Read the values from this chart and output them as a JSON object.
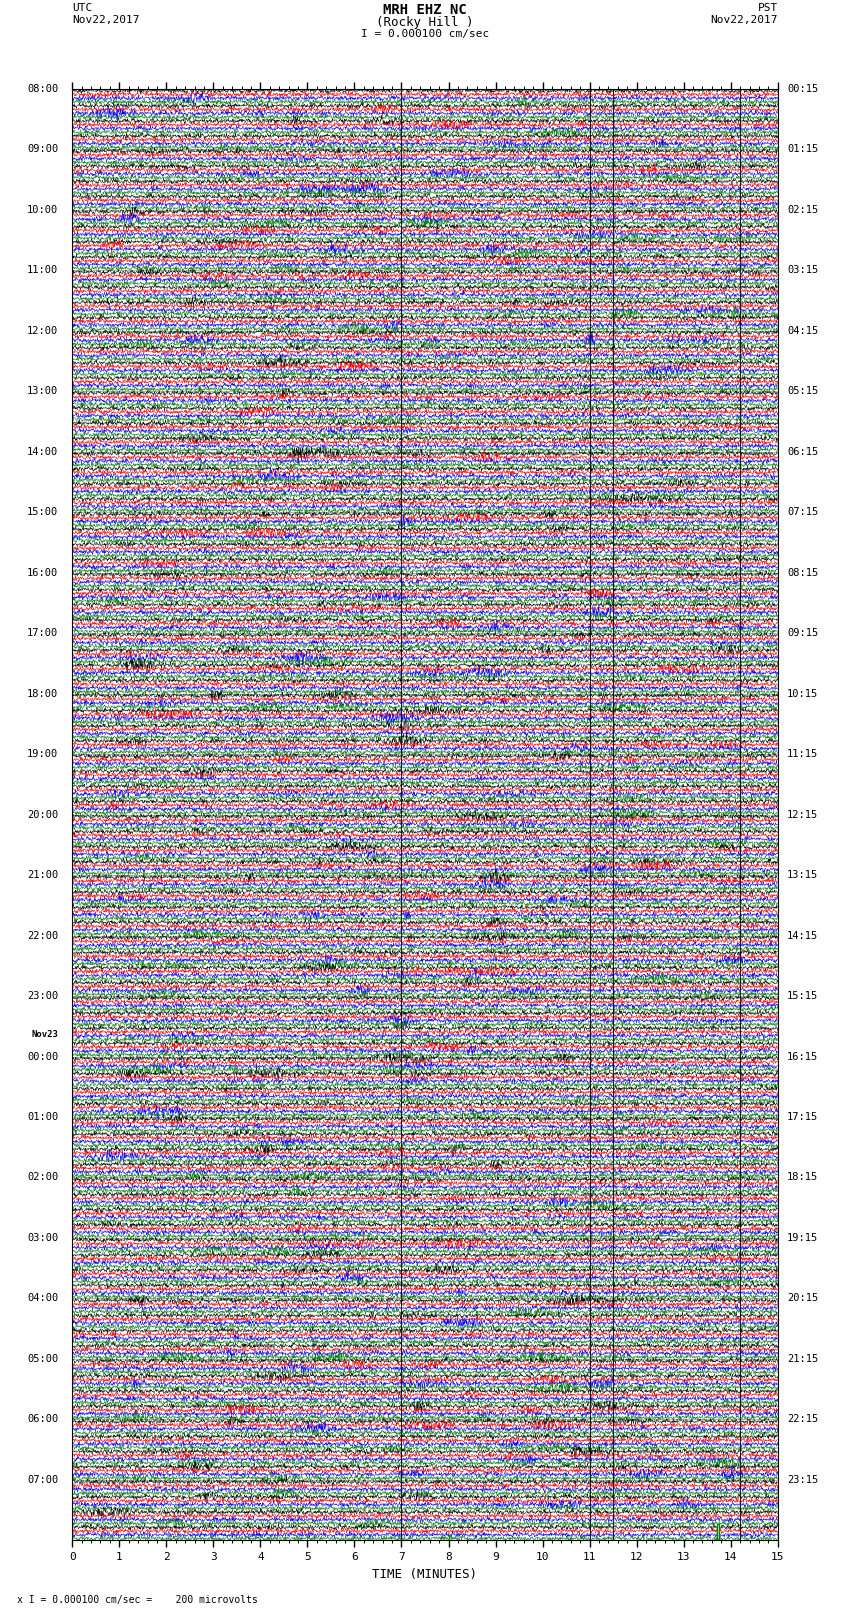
{
  "title_line1": "MRH EHZ NC",
  "title_line2": "(Rocky Hill )",
  "scale_label": "I = 0.000100 cm/sec",
  "left_label_top": "UTC",
  "left_label_date": "Nov22,2017",
  "right_label_top": "PST",
  "right_label_date": "Nov22,2017",
  "bottom_label": "TIME (MINUTES)",
  "bottom_note": "x I = 0.000100 cm/sec =    200 microvolts",
  "utc_times_labeled": [
    [
      "08:00",
      0
    ],
    [
      "09:00",
      4
    ],
    [
      "10:00",
      8
    ],
    [
      "11:00",
      12
    ],
    [
      "12:00",
      16
    ],
    [
      "13:00",
      20
    ],
    [
      "14:00",
      24
    ],
    [
      "15:00",
      28
    ],
    [
      "16:00",
      32
    ],
    [
      "17:00",
      36
    ],
    [
      "18:00",
      40
    ],
    [
      "19:00",
      44
    ],
    [
      "20:00",
      48
    ],
    [
      "21:00",
      52
    ],
    [
      "22:00",
      56
    ],
    [
      "23:00",
      60
    ],
    [
      "Nov23",
      63
    ],
    [
      "00:00",
      64
    ],
    [
      "01:00",
      68
    ],
    [
      "02:00",
      72
    ],
    [
      "03:00",
      76
    ],
    [
      "04:00",
      80
    ],
    [
      "05:00",
      84
    ],
    [
      "06:00",
      88
    ],
    [
      "07:00",
      92
    ]
  ],
  "pst_times_labeled": [
    [
      "00:15",
      0
    ],
    [
      "01:15",
      4
    ],
    [
      "02:15",
      8
    ],
    [
      "03:15",
      12
    ],
    [
      "04:15",
      16
    ],
    [
      "05:15",
      20
    ],
    [
      "06:15",
      24
    ],
    [
      "07:15",
      28
    ],
    [
      "08:15",
      32
    ],
    [
      "09:15",
      36
    ],
    [
      "10:15",
      40
    ],
    [
      "11:15",
      44
    ],
    [
      "12:15",
      48
    ],
    [
      "13:15",
      52
    ],
    [
      "14:15",
      56
    ],
    [
      "15:15",
      60
    ],
    [
      "16:15",
      64
    ],
    [
      "17:15",
      68
    ],
    [
      "18:15",
      72
    ],
    [
      "19:15",
      76
    ],
    [
      "20:15",
      80
    ],
    [
      "21:15",
      84
    ],
    [
      "22:15",
      88
    ],
    [
      "23:15",
      92
    ]
  ],
  "colors": [
    "black",
    "red",
    "blue",
    "green"
  ],
  "num_rows": 96,
  "x_min": 0,
  "x_max": 15,
  "bg_color": "white",
  "vertical_lines": [
    7.0,
    11.0,
    11.5,
    14.2
  ],
  "vertical_line_color": "black",
  "scale_bar_color": "green"
}
